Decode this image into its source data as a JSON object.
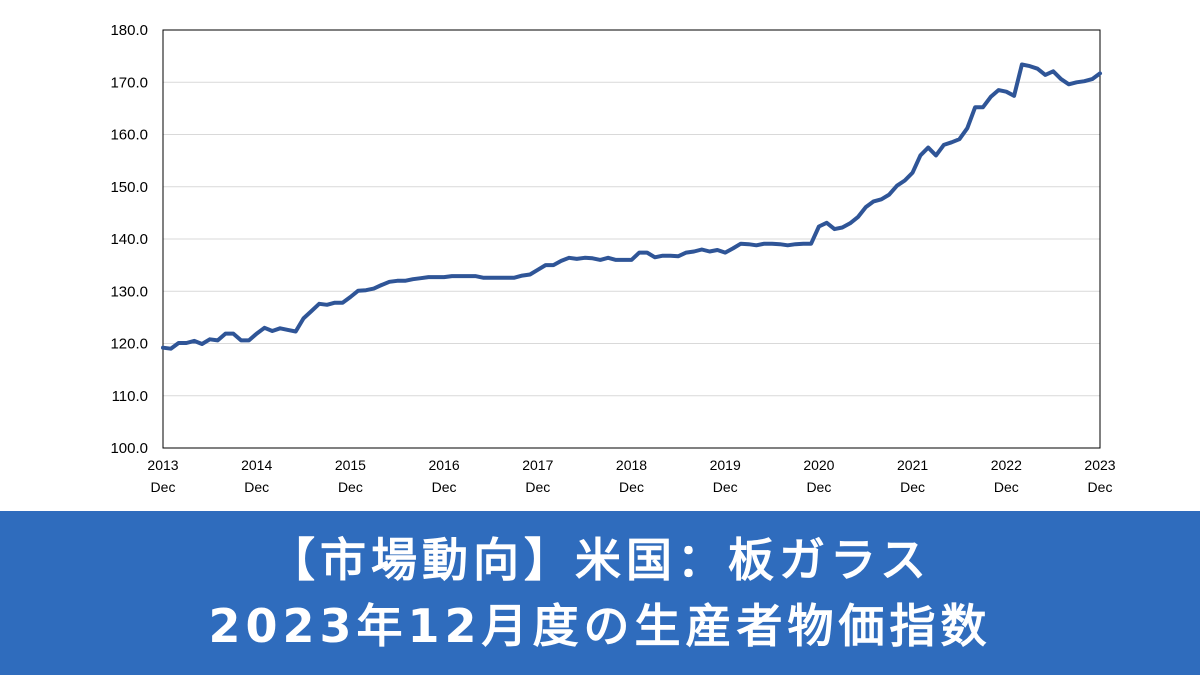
{
  "banner": {
    "line1": "【市場動向】米国：板ガラス",
    "line2": "2023年12月度の生産者物価指数"
  },
  "colors": {
    "line": "#2f5597",
    "banner": "#2f6cbd",
    "grid": "#d9d9d9"
  },
  "chart_data": {
    "type": "line",
    "title": "",
    "xlabel": "",
    "ylabel": "",
    "ylim": [
      100,
      180
    ],
    "yticks": [
      "100.0",
      "110.0",
      "120.0",
      "130.0",
      "140.0",
      "150.0",
      "160.0",
      "170.0",
      "180.0"
    ],
    "xticks": [
      {
        "year": "2013",
        "month": "Dec"
      },
      {
        "year": "2014",
        "month": "Dec"
      },
      {
        "year": "2015",
        "month": "Dec"
      },
      {
        "year": "2016",
        "month": "Dec"
      },
      {
        "year": "2017",
        "month": "Dec"
      },
      {
        "year": "2018",
        "month": "Dec"
      },
      {
        "year": "2019",
        "month": "Dec"
      },
      {
        "year": "2020",
        "month": "Dec"
      },
      {
        "year": "2021",
        "month": "Dec"
      },
      {
        "year": "2022",
        "month": "Dec"
      },
      {
        "year": "2023",
        "month": "Dec"
      }
    ],
    "x_range": [
      "2013-12",
      "2023-12"
    ],
    "grid": true,
    "series": [
      {
        "values": [
          119.2,
          119.0,
          120.1,
          120.1,
          120.5,
          119.9,
          120.8,
          120.6,
          121.9,
          121.9,
          120.6,
          120.6,
          121.9,
          123.0,
          122.4,
          122.9,
          122.6,
          122.3,
          124.8,
          126.2,
          127.6,
          127.4,
          127.8,
          127.8,
          128.9,
          130.1,
          130.2,
          130.5,
          131.2,
          131.8,
          132.0,
          132.0,
          132.3,
          132.5,
          132.7,
          132.7,
          132.7,
          132.9,
          132.9,
          132.9,
          132.9,
          132.6,
          132.6,
          132.6,
          132.6,
          132.6,
          133.0,
          133.2,
          134.1,
          135.0,
          135.0,
          135.8,
          136.4,
          136.2,
          136.4,
          136.3,
          136.0,
          136.4,
          136.0,
          136.0,
          136.0,
          137.4,
          137.4,
          136.5,
          136.8,
          136.8,
          136.7,
          137.4,
          137.6,
          138.0,
          137.6,
          137.9,
          137.4,
          138.2,
          139.1,
          139.0,
          138.8,
          139.1,
          139.1,
          139.0,
          138.8,
          139.0,
          139.1,
          139.1,
          142.4,
          143.1,
          141.9,
          142.2,
          143.0,
          144.2,
          146.1,
          147.2,
          147.6,
          148.5,
          150.2,
          151.2,
          152.7,
          156.0,
          157.5,
          156.0,
          158.0,
          158.5,
          159.1,
          161.2,
          165.2,
          165.2,
          167.2,
          168.5,
          168.2,
          167.4,
          173.4,
          173.1,
          172.6,
          171.4,
          172.1,
          170.6,
          169.6,
          170.0,
          170.2,
          170.6,
          171.7
        ]
      }
    ]
  }
}
